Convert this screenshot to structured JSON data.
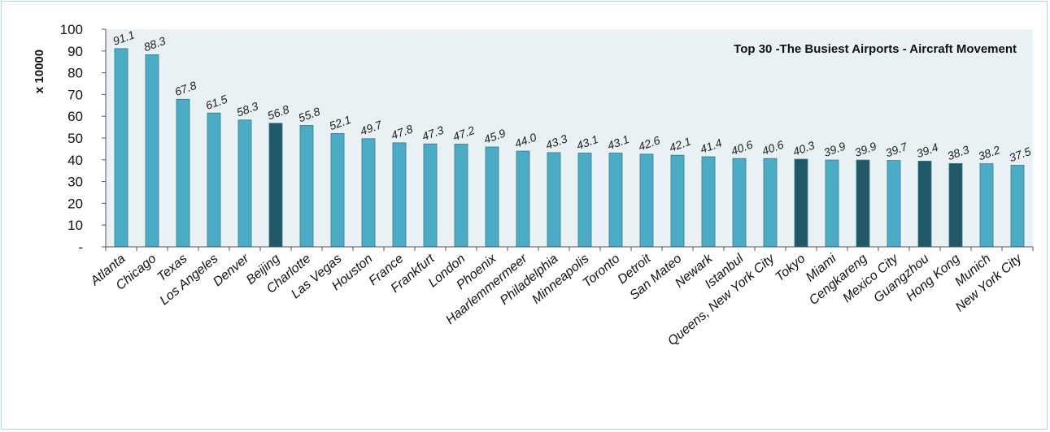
{
  "chart_data": {
    "type": "bar",
    "title": "Top 30 -The Busiest Airports - Aircraft Movement",
    "ylabel": "x 10000",
    "xlabel": "",
    "ylim": [
      0,
      100
    ],
    "yticks": [
      "-",
      "10",
      "20",
      "30",
      "40",
      "50",
      "60",
      "70",
      "80",
      "90",
      "100"
    ],
    "grid": false,
    "categories": [
      "Atlanta",
      "Chicago",
      "Texas",
      "Los Angeles",
      "Denver",
      "Beijing",
      "Charlotte",
      "Las Vegas",
      "Houston",
      "France",
      "Frankfurt",
      "London",
      "Phoenix",
      "Haarlemmermeer",
      "Philadelphia",
      "Minneapolis",
      "Toronto",
      "Detroit",
      "San Mateo",
      "Newark",
      "Istanbul",
      "Queens, New York City",
      "Tokyo",
      "Miami",
      "Cengkareng",
      "Mexico City",
      "Guangzhou",
      "Hong Kong",
      "Munich",
      "New York City"
    ],
    "values": [
      91.1,
      88.3,
      67.8,
      61.5,
      58.3,
      56.8,
      55.8,
      52.1,
      49.7,
      47.8,
      47.3,
      47.2,
      45.9,
      44.0,
      43.3,
      43.1,
      43.1,
      42.6,
      42.1,
      41.4,
      40.6,
      40.6,
      40.3,
      39.9,
      39.9,
      39.7,
      39.4,
      38.3,
      38.2,
      37.5
    ],
    "value_labels": [
      "91.1",
      "88.3",
      "67.8",
      "61.5",
      "58.3",
      "56.8",
      "55.8",
      "52.1",
      "49.7",
      "47.8",
      "47.3",
      "47.2",
      "45.9",
      "44.0",
      "43.3",
      "43.1",
      "43.1",
      "42.6",
      "42.1",
      "41.4",
      "40.6",
      "40.6",
      "40.3",
      "39.9",
      "39.9",
      "39.7",
      "39.4",
      "38.3",
      "38.2",
      "37.5"
    ],
    "highlighted": [
      "Beijing",
      "Tokyo",
      "Cengkareng",
      "Guangzhou",
      "Hong Kong"
    ],
    "colors": {
      "bar": "#4bacc6",
      "bar_highlight": "#215968",
      "bar_edge": "#2b7a8c",
      "plot_background": "#eaf1f4",
      "axis": "#555555"
    }
  }
}
